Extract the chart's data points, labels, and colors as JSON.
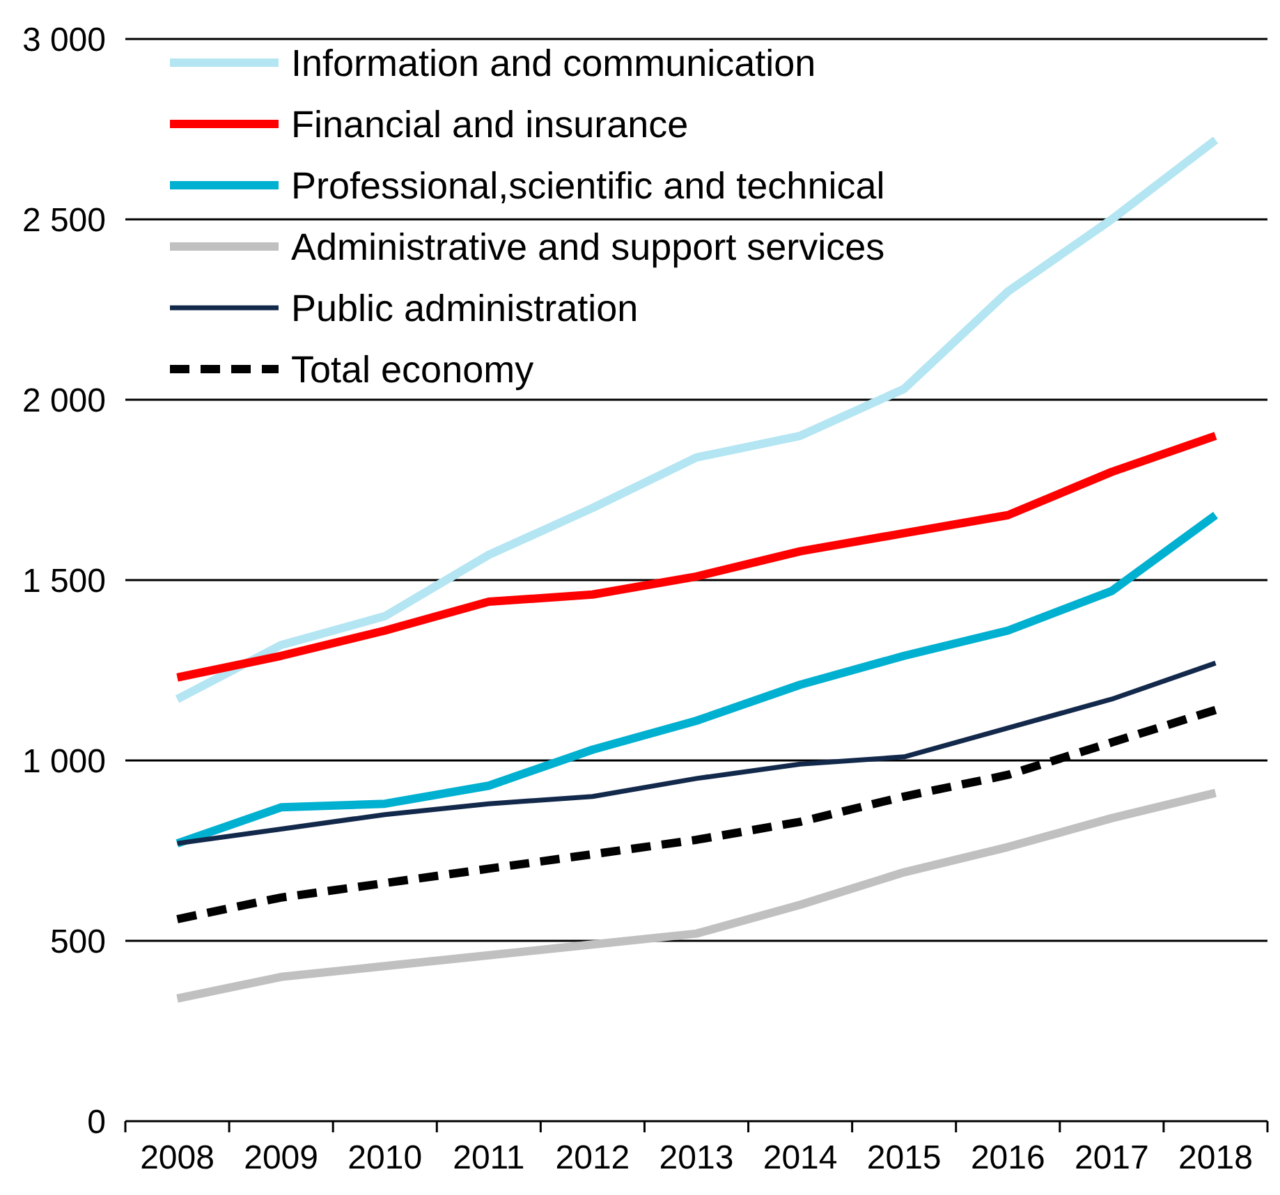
{
  "chart_data": {
    "type": "line",
    "categories": [
      "2008",
      "2009",
      "2010",
      "2011",
      "2012",
      "2013",
      "2014",
      "2015",
      "2016",
      "2017",
      "2018"
    ],
    "ylim": [
      0,
      3000
    ],
    "yticks": [
      0,
      {
        "value": 500,
        "label": "500"
      },
      {
        "value": 1000,
        "label": "1 000"
      },
      {
        "value": 1500,
        "label": "1 500"
      },
      {
        "value": 2000,
        "label": "2 000"
      },
      {
        "value": 2500,
        "label": "2 500"
      },
      {
        "value": 3000,
        "label": "3 000"
      }
    ],
    "grid": "y",
    "legend": "top left",
    "marker": "none",
    "series": [
      {
        "name": "Information and communication",
        "color": "#b3e5f2",
        "values": [
          1170,
          1320,
          1400,
          1570,
          1700,
          1840,
          1900,
          2030,
          2300,
          2500,
          2720
        ]
      },
      {
        "name": "Financial and insurance",
        "color": "#ff0000",
        "values": [
          1230,
          1290,
          1360,
          1440,
          1460,
          1510,
          1580,
          1630,
          1680,
          1800,
          1900
        ]
      },
      {
        "name": "Professional,scientific and technical",
        "color": "#00b0d0",
        "values": [
          770,
          870,
          880,
          930,
          1030,
          1110,
          1210,
          1290,
          1360,
          1470,
          1680
        ]
      },
      {
        "name": "Administrative and support services",
        "color": "#c0c0c0",
        "values": [
          340,
          400,
          430,
          460,
          490,
          520,
          600,
          690,
          760,
          840,
          910
        ]
      },
      {
        "name": "Public administration",
        "color": "#13294b",
        "values": [
          770,
          810,
          850,
          880,
          900,
          950,
          990,
          1010,
          1090,
          1170,
          1270
        ]
      },
      {
        "name": "Total economy",
        "color": "#000000",
        "line_style": "dashed",
        "values": [
          560,
          620,
          660,
          700,
          740,
          780,
          830,
          900,
          960,
          1050,
          1140
        ]
      }
    ]
  }
}
